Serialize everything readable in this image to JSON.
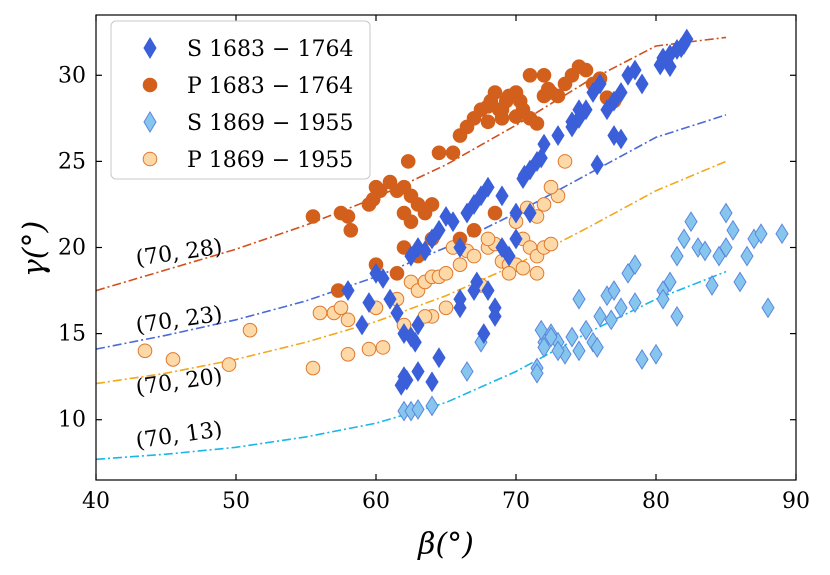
{
  "chart_data": {
    "type": "scatter",
    "xlabel": "β(°)",
    "ylabel": "γ(°)",
    "xlim": [
      40,
      90
    ],
    "ylim": [
      6.5,
      33.5
    ],
    "xticks": [
      40,
      50,
      60,
      70,
      80,
      90
    ],
    "yticks": [
      10,
      15,
      20,
      25,
      30
    ],
    "legend_position": "top-left",
    "colors": {
      "s_old": "#3a5fd9",
      "p_old": "#d2601c",
      "s_new": "#86c6ee",
      "p_new": "#fdd9a8",
      "curve_28": "#d2501c",
      "curve_23": "#4a6ad8",
      "curve_20": "#f4a81c",
      "curve_13": "#1ab6ea"
    },
    "series": [
      {
        "name": "S 1683 − 1764",
        "marker": "diamond",
        "points": [
          [
            58,
            17.5
          ],
          [
            59.5,
            16.8
          ],
          [
            60,
            18.5
          ],
          [
            60.5,
            18.2
          ],
          [
            61,
            17
          ],
          [
            61.5,
            16.2
          ],
          [
            59,
            15.5
          ],
          [
            62,
            15
          ],
          [
            62.5,
            14.8
          ],
          [
            63,
            15.5
          ],
          [
            62.8,
            14.5
          ],
          [
            62,
            12.5
          ],
          [
            61.8,
            12
          ],
          [
            62.2,
            12.3
          ],
          [
            63,
            12.8
          ],
          [
            64,
            12.2
          ],
          [
            64.5,
            13.6
          ],
          [
            62.5,
            19.5
          ],
          [
            63,
            20
          ],
          [
            63.5,
            19.8
          ],
          [
            64,
            20.5
          ],
          [
            64.5,
            21
          ],
          [
            65,
            21.8
          ],
          [
            65.5,
            21.5
          ],
          [
            66,
            20
          ],
          [
            66.5,
            22
          ],
          [
            67,
            22.5
          ],
          [
            67.5,
            23
          ],
          [
            66,
            17
          ],
          [
            66,
            16.5
          ],
          [
            67,
            17.5
          ],
          [
            67.2,
            18
          ],
          [
            68,
            17.5
          ],
          [
            68.5,
            16
          ],
          [
            68.5,
            16.5
          ],
          [
            67.7,
            15
          ],
          [
            69,
            20
          ],
          [
            69.5,
            19.5
          ],
          [
            70,
            20.5
          ],
          [
            69,
            23
          ],
          [
            70,
            22
          ],
          [
            70.5,
            24
          ],
          [
            70.6,
            24.2
          ],
          [
            71,
            24.5
          ],
          [
            71.5,
            25
          ],
          [
            71.8,
            25.2
          ],
          [
            71,
            22
          ],
          [
            68,
            23.5
          ],
          [
            73,
            26.5
          ],
          [
            74,
            27
          ],
          [
            74.5,
            27.5
          ],
          [
            75,
            28
          ],
          [
            75.5,
            29
          ],
          [
            76,
            29.5
          ],
          [
            76.5,
            28
          ],
          [
            77,
            28.5
          ],
          [
            77.5,
            29
          ],
          [
            78,
            30
          ],
          [
            78.5,
            30.3
          ],
          [
            79,
            29.5
          ],
          [
            75.8,
            24.8
          ],
          [
            77,
            26.5
          ],
          [
            77.5,
            26.3
          ],
          [
            80.5,
            31
          ],
          [
            81,
            31.2
          ],
          [
            81.5,
            31.5
          ],
          [
            81.8,
            31.6
          ],
          [
            82,
            31.8
          ],
          [
            82.2,
            32.1
          ],
          [
            81,
            30.5
          ],
          [
            80.3,
            30.6
          ],
          [
            74,
            27.3
          ],
          [
            74.5,
            28
          ],
          [
            72,
            26
          ]
        ]
      },
      {
        "name": "P 1683 − 1764",
        "marker": "circle",
        "points": [
          [
            55.5,
            21.8
          ],
          [
            57.5,
            22
          ],
          [
            58,
            21.8
          ],
          [
            58.2,
            21
          ],
          [
            59.5,
            22.5
          ],
          [
            59.8,
            22.8
          ],
          [
            60,
            23.5
          ],
          [
            60.3,
            23.3
          ],
          [
            61,
            23.8
          ],
          [
            61.5,
            23.3
          ],
          [
            62,
            23.5
          ],
          [
            62.5,
            23
          ],
          [
            62.3,
            25
          ],
          [
            62,
            22
          ],
          [
            63,
            22.5
          ],
          [
            62.5,
            21.5
          ],
          [
            63.5,
            22
          ],
          [
            64,
            22.5
          ],
          [
            64.5,
            25.5
          ],
          [
            65.5,
            25.5
          ],
          [
            66,
            26.5
          ],
          [
            66.5,
            27
          ],
          [
            67,
            27.5
          ],
          [
            67.5,
            28
          ],
          [
            68,
            28.2
          ],
          [
            68.2,
            28.5
          ],
          [
            68.5,
            29
          ],
          [
            68.8,
            28
          ],
          [
            69,
            27.5
          ],
          [
            69.3,
            28.5
          ],
          [
            69.5,
            28.8
          ],
          [
            70,
            29
          ],
          [
            70.3,
            28.5
          ],
          [
            70.5,
            28
          ],
          [
            71,
            27.5
          ],
          [
            71.5,
            27.2
          ],
          [
            72,
            28.8
          ],
          [
            72.3,
            29.2
          ],
          [
            72.5,
            29
          ],
          [
            73,
            28.8
          ],
          [
            73.5,
            29.5
          ],
          [
            74,
            30
          ],
          [
            74.5,
            30.5
          ],
          [
            75,
            30.3
          ],
          [
            75.5,
            29.5
          ],
          [
            76,
            29.8
          ],
          [
            76.5,
            28.7
          ],
          [
            77,
            28.5
          ],
          [
            68,
            27.3
          ],
          [
            69,
            28
          ],
          [
            70,
            27.6
          ],
          [
            71,
            30
          ],
          [
            72,
            30
          ],
          [
            57.3,
            17.5
          ],
          [
            60,
            19
          ],
          [
            61.5,
            18.5
          ],
          [
            64,
            20.5
          ],
          [
            66,
            20.5
          ],
          [
            67,
            21
          ],
          [
            68.5,
            22
          ],
          [
            62,
            20
          ],
          [
            63,
            19.5
          ]
        ]
      },
      {
        "name": "S 1869 − 1955",
        "marker": "diamond",
        "points": [
          [
            62,
            10.5
          ],
          [
            62.5,
            10.5
          ],
          [
            63,
            10.6
          ],
          [
            64,
            10.8
          ],
          [
            71.5,
            13
          ],
          [
            71.5,
            12.7
          ],
          [
            72,
            14.5
          ],
          [
            72.5,
            15
          ],
          [
            73,
            14.5
          ],
          [
            73.5,
            13.8
          ],
          [
            74,
            14.8
          ],
          [
            74.5,
            14
          ],
          [
            75,
            15.2
          ],
          [
            75.5,
            14.5
          ],
          [
            76,
            16
          ],
          [
            76.5,
            17.2
          ],
          [
            77,
            17.5
          ],
          [
            77.5,
            16.5
          ],
          [
            78,
            18.5
          ],
          [
            78.5,
            19
          ],
          [
            79,
            13.5
          ],
          [
            80,
            13.8
          ],
          [
            80.5,
            17.5
          ],
          [
            81,
            18
          ],
          [
            81.5,
            19.5
          ],
          [
            82,
            20.5
          ],
          [
            82.5,
            21.5
          ],
          [
            83,
            20
          ],
          [
            83.5,
            19.8
          ],
          [
            84,
            17.8
          ],
          [
            84.5,
            19.5
          ],
          [
            85,
            20
          ],
          [
            85,
            22
          ],
          [
            85.5,
            21
          ],
          [
            86,
            18
          ],
          [
            86.5,
            19.5
          ],
          [
            87,
            20.5
          ],
          [
            87.5,
            20.8
          ],
          [
            88,
            16.5
          ],
          [
            89,
            20.8
          ],
          [
            81.5,
            16
          ],
          [
            80.5,
            17
          ],
          [
            73,
            14
          ],
          [
            72,
            14.2
          ],
          [
            74.5,
            17
          ],
          [
            78.5,
            16.8
          ],
          [
            66.5,
            12.8
          ],
          [
            67.5,
            14.5
          ],
          [
            71.8,
            15.2
          ],
          [
            72.5,
            14.8
          ],
          [
            75.8,
            14.2
          ],
          [
            76.8,
            15.8
          ]
        ]
      },
      {
        "name": "P 1869 − 1955",
        "marker": "circle",
        "points": [
          [
            43.5,
            14
          ],
          [
            45.5,
            13.5
          ],
          [
            49.5,
            13.2
          ],
          [
            51,
            15.2
          ],
          [
            55.5,
            13
          ],
          [
            56,
            16.2
          ],
          [
            57,
            16.2
          ],
          [
            57.5,
            16.5
          ],
          [
            58,
            15.8
          ],
          [
            58,
            13.8
          ],
          [
            59.5,
            14.1
          ],
          [
            60,
            16.5
          ],
          [
            60.5,
            14.2
          ],
          [
            61.5,
            17
          ],
          [
            62,
            15.5
          ],
          [
            62.5,
            18
          ],
          [
            63,
            17.5
          ],
          [
            63.5,
            18
          ],
          [
            64,
            18.3
          ],
          [
            64.5,
            18.3
          ],
          [
            65,
            18.5
          ],
          [
            65.5,
            20
          ],
          [
            66,
            19
          ],
          [
            66.5,
            19.8
          ],
          [
            67,
            19.5
          ],
          [
            67.5,
            17.8
          ],
          [
            68,
            20
          ],
          [
            68.5,
            20.2
          ],
          [
            69,
            19.2
          ],
          [
            69.5,
            19
          ],
          [
            70,
            19
          ],
          [
            70.5,
            20.5
          ],
          [
            71,
            20
          ],
          [
            71.5,
            19.5
          ],
          [
            72,
            20
          ],
          [
            72.5,
            20.2
          ],
          [
            73,
            23
          ],
          [
            70,
            21.5
          ],
          [
            70.8,
            22.3
          ],
          [
            71.5,
            21.8
          ],
          [
            72,
            22.5
          ],
          [
            72.5,
            23.5
          ],
          [
            73.5,
            25
          ],
          [
            64,
            16
          ],
          [
            65,
            16.5
          ],
          [
            63.5,
            16
          ],
          [
            68,
            20.5
          ],
          [
            69.5,
            18.5
          ],
          [
            70.5,
            18.8
          ],
          [
            71.5,
            18.5
          ]
        ]
      }
    ],
    "curves": [
      {
        "label": "(70, 28)",
        "points": [
          [
            40,
            17.5
          ],
          [
            45,
            18.7
          ],
          [
            50,
            19.9
          ],
          [
            55,
            21.3
          ],
          [
            60,
            22.9
          ],
          [
            65,
            24.8
          ],
          [
            70,
            27.1
          ],
          [
            75,
            29.6
          ],
          [
            80,
            31.7
          ],
          [
            85,
            32.2
          ]
        ]
      },
      {
        "label": "(70, 23)",
        "points": [
          [
            40,
            14.1
          ],
          [
            45,
            14.9
          ],
          [
            50,
            15.8
          ],
          [
            55,
            16.9
          ],
          [
            60,
            18.3
          ],
          [
            65,
            20.0
          ],
          [
            70,
            22.0
          ],
          [
            75,
            24.2
          ],
          [
            80,
            26.4
          ],
          [
            85,
            27.7
          ]
        ]
      },
      {
        "label": "(70, 20)",
        "points": [
          [
            40,
            12.1
          ],
          [
            45,
            12.7
          ],
          [
            50,
            13.5
          ],
          [
            55,
            14.5
          ],
          [
            60,
            15.7
          ],
          [
            65,
            17.2
          ],
          [
            70,
            19.0
          ],
          [
            75,
            21.1
          ],
          [
            80,
            23.3
          ],
          [
            85,
            25.0
          ]
        ]
      },
      {
        "label": "(70, 13)",
        "points": [
          [
            40,
            7.7
          ],
          [
            45,
            8.0
          ],
          [
            50,
            8.4
          ],
          [
            55,
            9.0
          ],
          [
            60,
            9.8
          ],
          [
            65,
            11.0
          ],
          [
            70,
            12.8
          ],
          [
            75,
            15.0
          ],
          [
            80,
            17.0
          ],
          [
            85,
            18.6
          ]
        ]
      }
    ],
    "curve_label_positions": [
      [
        46,
        19.3
      ],
      [
        46,
        15.4
      ],
      [
        46,
        11.8
      ],
      [
        46,
        8.7
      ]
    ]
  }
}
